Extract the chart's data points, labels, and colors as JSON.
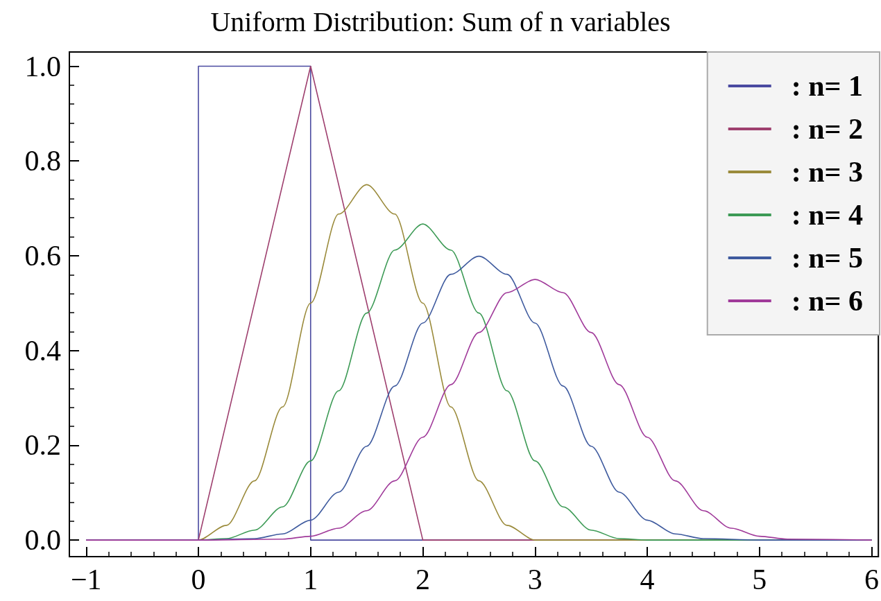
{
  "chart_data": {
    "type": "line",
    "title": "Uniform Distribution: Sum of n variables",
    "xlim": [
      -1.15,
      6.06
    ],
    "ylim": [
      -0.035,
      1.03
    ],
    "xticks": [
      {
        "value": -1,
        "label": "−1"
      },
      0,
      1,
      2,
      3,
      4,
      5,
      6
    ],
    "yticks": [
      {
        "value": 0,
        "label": "0.0"
      },
      {
        "value": 0.2,
        "label": "0.2"
      },
      {
        "value": 0.4,
        "label": "0.4"
      },
      {
        "value": 0.6,
        "label": "0.6"
      },
      {
        "value": 0.8,
        "label": "0.8"
      },
      {
        "value": 1,
        "label": "1.0"
      }
    ],
    "grid": false,
    "legend": "top right",
    "marker": "none",
    "line_style": "solid",
    "series": [
      {
        "name": ": n= 1",
        "color": "#4a4aa0",
        "x": [
          -1,
          0,
          0,
          1,
          1,
          6
        ],
        "values": [
          0,
          0,
          1,
          1,
          0,
          0
        ]
      },
      {
        "name": ": n= 2",
        "color": "#9e3f6e",
        "x": [
          -1,
          0,
          1,
          2,
          6
        ],
        "values": [
          0,
          0,
          1,
          0,
          0
        ]
      },
      {
        "name": ": n= 3",
        "color": "#9a8a3a",
        "x": [
          -1,
          0,
          0.25,
          0.5,
          0.75,
          1,
          1.25,
          1.5,
          1.75,
          2,
          2.25,
          2.5,
          2.75,
          3,
          6
        ],
        "values": [
          0,
          0,
          0.031,
          0.125,
          0.281,
          0.5,
          0.688,
          0.75,
          0.688,
          0.5,
          0.281,
          0.125,
          0.031,
          0,
          0
        ]
      },
      {
        "name": ": n= 4",
        "color": "#3c9a55",
        "x": [
          -1,
          0,
          0.25,
          0.5,
          0.75,
          1,
          1.25,
          1.5,
          1.75,
          2,
          2.25,
          2.5,
          2.75,
          3,
          3.25,
          3.5,
          3.75,
          4,
          6
        ],
        "values": [
          0,
          0,
          0.003,
          0.021,
          0.07,
          0.167,
          0.315,
          0.479,
          0.612,
          0.667,
          0.612,
          0.479,
          0.315,
          0.167,
          0.07,
          0.021,
          0.003,
          0,
          0
        ]
      },
      {
        "name": ": n= 5",
        "color": "#3e5a9e",
        "x": [
          -1,
          0,
          0.5,
          0.75,
          1,
          1.25,
          1.5,
          1.75,
          2,
          2.25,
          2.5,
          2.75,
          3,
          3.25,
          3.5,
          3.75,
          4,
          4.25,
          4.5,
          5,
          6
        ],
        "values": [
          0,
          0,
          0.003,
          0.013,
          0.042,
          0.101,
          0.198,
          0.325,
          0.458,
          0.561,
          0.599,
          0.561,
          0.458,
          0.325,
          0.198,
          0.101,
          0.042,
          0.013,
          0.003,
          0,
          0
        ]
      },
      {
        "name": ": n= 6",
        "color": "#a03a9a",
        "x": [
          -1,
          0,
          0.75,
          1,
          1.25,
          1.5,
          1.75,
          2,
          2.25,
          2.5,
          2.75,
          3,
          3.25,
          3.5,
          3.75,
          4,
          4.25,
          4.5,
          4.75,
          5,
          5.25,
          6
        ],
        "values": [
          0,
          0,
          0.002,
          0.008,
          0.025,
          0.062,
          0.125,
          0.217,
          0.328,
          0.438,
          0.522,
          0.55,
          0.522,
          0.438,
          0.328,
          0.217,
          0.125,
          0.062,
          0.025,
          0.008,
          0.002,
          0
        ]
      }
    ]
  }
}
